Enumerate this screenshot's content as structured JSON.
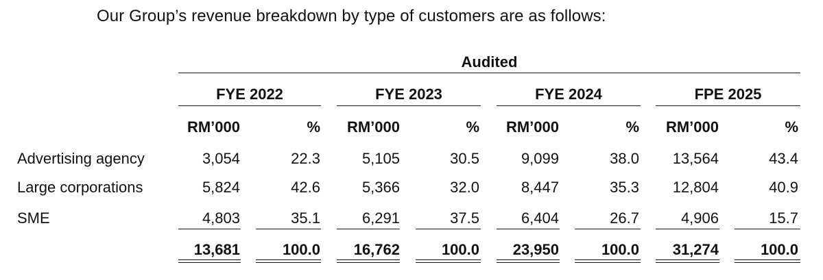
{
  "intro_text": "Our Group’s revenue breakdown by type of customers are as follows:",
  "table": {
    "group_header": "Audited",
    "periods": [
      "FYE 2022",
      "FYE 2023",
      "FYE 2024",
      "FPE 2025"
    ],
    "unit_amount": "RM’000",
    "unit_percent": "%",
    "rows": [
      {
        "label": "Advertising agency",
        "values": [
          "3,054",
          "22.3",
          "5,105",
          "30.5",
          "9,099",
          "38.0",
          "13,564",
          "43.4"
        ]
      },
      {
        "label": "Large corporations",
        "values": [
          "5,824",
          "42.6",
          "5,366",
          "32.0",
          "8,447",
          "35.3",
          "12,804",
          "40.9"
        ]
      },
      {
        "label": "SME",
        "values": [
          "4,803",
          "35.1",
          "6,291",
          "37.5",
          "6,404",
          "26.7",
          "4,906",
          "15.7"
        ]
      }
    ],
    "totals": [
      "13,681",
      "100.0",
      "16,762",
      "100.0",
      "23,950",
      "100.0",
      "31,274",
      "100.0"
    ]
  }
}
